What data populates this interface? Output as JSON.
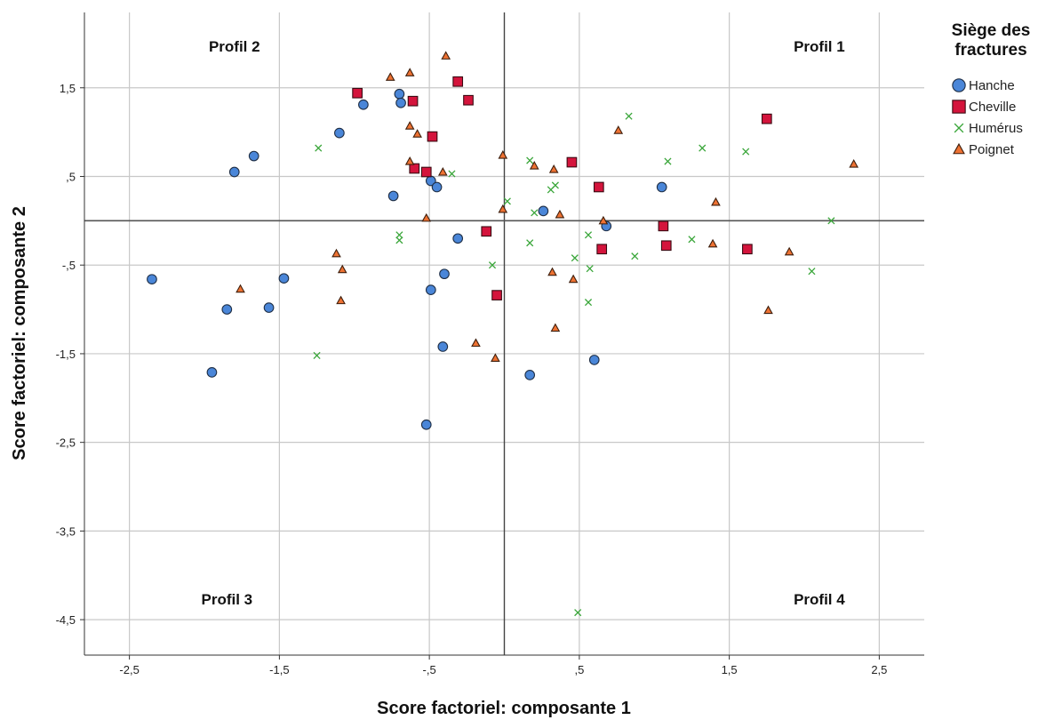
{
  "chart_data": {
    "type": "scatter",
    "xlabel": "Score factoriel: composante 1",
    "ylabel": "Score factoriel: composante 2",
    "xlim": [
      -2.8,
      2.8
    ],
    "ylim": [
      -4.9,
      2.35
    ],
    "x_ticks": [
      -2.5,
      -1.5,
      -0.5,
      0.5,
      1.5,
      2.5
    ],
    "x_tick_labels": [
      "-2,5",
      "-1,5",
      "-,5",
      ",5",
      "1,5",
      "2,5"
    ],
    "y_ticks": [
      1.5,
      0.5,
      -0.5,
      -1.5,
      -2.5,
      -3.5,
      -4.5
    ],
    "y_tick_labels": [
      "1,5",
      ",5",
      "-,5",
      "-1,5",
      "-2,5",
      "-3,5",
      "-4,5"
    ],
    "grid": true,
    "reference_lines": {
      "x": 0,
      "y": 0
    },
    "legend": {
      "title_lines": [
        "Siège des",
        "fractures"
      ],
      "placement": "right"
    },
    "annotations": [
      {
        "text": "Profil 1",
        "x": 2.1,
        "y": 1.97
      },
      {
        "text": "Profil 2",
        "x": -1.8,
        "y": 1.97
      },
      {
        "text": "Profil 3",
        "x": -1.85,
        "y": -4.27
      },
      {
        "text": "Profil 4",
        "x": 2.1,
        "y": -4.27
      }
    ],
    "series": [
      {
        "name": "Hanche",
        "marker": "circle",
        "color": "#4a86d8",
        "points": [
          [
            -2.35,
            -0.66
          ],
          [
            -1.95,
            -1.71
          ],
          [
            -1.85,
            -1.0
          ],
          [
            -1.8,
            0.55
          ],
          [
            -1.67,
            0.73
          ],
          [
            -1.57,
            -0.98
          ],
          [
            -1.47,
            -0.65
          ],
          [
            -1.1,
            0.99
          ],
          [
            -0.94,
            1.31
          ],
          [
            -0.74,
            0.28
          ],
          [
            -0.7,
            1.43
          ],
          [
            -0.69,
            1.33
          ],
          [
            -0.49,
            0.45
          ],
          [
            -0.45,
            0.38
          ],
          [
            -0.4,
            -0.6
          ],
          [
            -0.41,
            -1.42
          ],
          [
            -0.49,
            -0.78
          ],
          [
            -0.52,
            -2.3
          ],
          [
            -0.31,
            -0.2
          ],
          [
            0.26,
            0.11
          ],
          [
            0.17,
            -1.74
          ],
          [
            0.6,
            -1.57
          ],
          [
            0.68,
            -0.06
          ],
          [
            1.05,
            0.38
          ]
        ]
      },
      {
        "name": "Cheville",
        "marker": "square",
        "color": "#d4143c",
        "points": [
          [
            -0.98,
            1.44
          ],
          [
            -0.61,
            1.35
          ],
          [
            -0.6,
            0.59
          ],
          [
            -0.52,
            0.55
          ],
          [
            -0.48,
            0.95
          ],
          [
            -0.31,
            1.57
          ],
          [
            -0.24,
            1.36
          ],
          [
            -0.12,
            -0.12
          ],
          [
            -0.05,
            -0.84
          ],
          [
            0.45,
            0.66
          ],
          [
            0.63,
            0.38
          ],
          [
            0.65,
            -0.32
          ],
          [
            1.06,
            -0.06
          ],
          [
            1.08,
            -0.28
          ],
          [
            1.62,
            -0.32
          ],
          [
            1.75,
            1.15
          ]
        ]
      },
      {
        "name": "Humérus",
        "marker": "x",
        "color": "#3aa63a",
        "points": [
          [
            -1.24,
            0.82
          ],
          [
            -1.25,
            -1.52
          ],
          [
            -0.7,
            -0.16
          ],
          [
            -0.7,
            -0.22
          ],
          [
            -0.35,
            0.53
          ],
          [
            -0.08,
            -0.5
          ],
          [
            0.02,
            0.22
          ],
          [
            0.17,
            0.68
          ],
          [
            0.17,
            -0.25
          ],
          [
            0.2,
            0.09
          ],
          [
            0.31,
            0.35
          ],
          [
            0.34,
            0.4
          ],
          [
            0.47,
            -0.42
          ],
          [
            0.56,
            -0.16
          ],
          [
            0.57,
            -0.54
          ],
          [
            0.56,
            -0.92
          ],
          [
            0.49,
            -4.42
          ],
          [
            0.83,
            1.18
          ],
          [
            0.87,
            -0.4
          ],
          [
            1.09,
            0.67
          ],
          [
            1.25,
            -0.21
          ],
          [
            1.32,
            0.82
          ],
          [
            1.61,
            0.78
          ],
          [
            2.05,
            -0.57
          ],
          [
            2.18,
            0.0
          ]
        ]
      },
      {
        "name": "Poignet",
        "marker": "triangle",
        "color": "#ee7233",
        "points": [
          [
            -1.76,
            -0.77
          ],
          [
            -1.12,
            -0.37
          ],
          [
            -1.09,
            -0.9
          ],
          [
            -1.08,
            -0.55
          ],
          [
            -0.76,
            1.62
          ],
          [
            -0.63,
            1.67
          ],
          [
            -0.63,
            1.07
          ],
          [
            -0.63,
            0.67
          ],
          [
            -0.58,
            0.98
          ],
          [
            -0.41,
            0.55
          ],
          [
            -0.39,
            1.86
          ],
          [
            -0.52,
            0.03
          ],
          [
            -0.19,
            -1.38
          ],
          [
            -0.06,
            -1.55
          ],
          [
            -0.01,
            0.13
          ],
          [
            -0.01,
            0.74
          ],
          [
            0.2,
            0.62
          ],
          [
            0.32,
            -0.58
          ],
          [
            0.33,
            0.58
          ],
          [
            0.34,
            -1.21
          ],
          [
            0.37,
            0.07
          ],
          [
            0.46,
            -0.66
          ],
          [
            0.66,
            0.0
          ],
          [
            0.76,
            1.02
          ],
          [
            1.39,
            -0.26
          ],
          [
            1.41,
            0.21
          ],
          [
            1.76,
            -1.01
          ],
          [
            1.9,
            -0.35
          ],
          [
            2.33,
            0.64
          ]
        ]
      }
    ]
  }
}
